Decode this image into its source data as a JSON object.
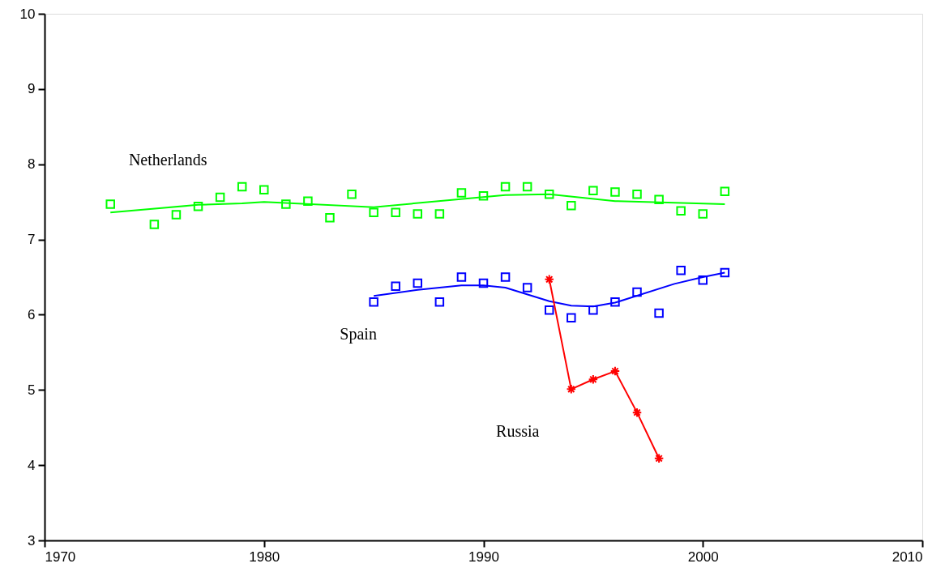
{
  "chart_data": {
    "type": "scatter",
    "xlim": [
      1970,
      2010
    ],
    "xticks": [
      1970,
      1980,
      1990,
      2000,
      2010
    ],
    "ylim": [
      3,
      10
    ],
    "yticks": [
      3,
      4,
      5,
      6,
      7,
      8,
      9,
      10
    ],
    "grid": false,
    "series": [
      {
        "name": "Netherlands",
        "color": "#00ff00",
        "marker": "square",
        "x": [
          1973,
          1975,
          1976,
          1977,
          1978,
          1979,
          1980,
          1981,
          1982,
          1983,
          1984,
          1985,
          1986,
          1987,
          1988,
          1989,
          1990,
          1991,
          1992,
          1993,
          1994,
          1995,
          1996,
          1997,
          1998,
          1999,
          2000,
          2001
        ],
        "values": [
          7.47,
          7.2,
          7.33,
          7.44,
          7.56,
          7.7,
          7.66,
          7.47,
          7.51,
          7.29,
          7.6,
          7.36,
          7.36,
          7.34,
          7.34,
          7.62,
          7.58,
          7.7,
          7.7,
          7.6,
          7.45,
          7.65,
          7.63,
          7.6,
          7.53,
          7.38,
          7.34,
          7.64
        ]
      },
      {
        "type": "line",
        "color": "#00ff00",
        "marker": "none",
        "x": [
          1973,
          1977,
          1979,
          1980,
          1985,
          1991,
          1993,
          1996,
          2001
        ],
        "values": [
          7.36,
          7.46,
          7.48,
          7.5,
          7.43,
          7.59,
          7.6,
          7.51,
          7.47
        ]
      },
      {
        "name": "Spain",
        "color": "#0000ff",
        "marker": "square",
        "x": [
          1985,
          1986,
          1987,
          1988,
          1989,
          1990,
          1991,
          1992,
          1993,
          1994,
          1995,
          1996,
          1997,
          1998,
          1999,
          2000,
          2001
        ],
        "values": [
          6.17,
          6.38,
          6.42,
          6.17,
          6.5,
          6.42,
          6.5,
          6.36,
          6.06,
          5.96,
          6.06,
          6.17,
          6.3,
          6.02,
          6.59,
          6.46,
          6.56
        ]
      },
      {
        "type": "line",
        "color": "#0000ff",
        "marker": "none",
        "x": [
          1985,
          1987,
          1989,
          1990,
          1991,
          1993,
          1994,
          1995,
          1996,
          1998.7,
          2000,
          2001
        ],
        "values": [
          6.25,
          6.33,
          6.39,
          6.39,
          6.36,
          6.18,
          6.12,
          6.11,
          6.16,
          6.41,
          6.5,
          6.56
        ]
      },
      {
        "name": "Russia",
        "type": "line",
        "color": "#ff0000",
        "marker": "cross",
        "x": [
          1993,
          1994,
          1995,
          1996,
          1997,
          1998
        ],
        "values": [
          6.47,
          5.01,
          5.14,
          5.25,
          4.7,
          4.09
        ]
      }
    ]
  }
}
